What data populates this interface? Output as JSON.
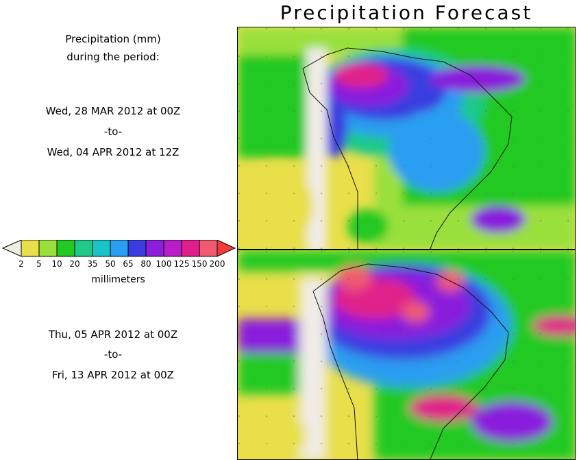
{
  "title": "Precipitation Forecast",
  "legend": {
    "header_line1": "Precipitation (mm)",
    "header_line2": "during the period:",
    "units": "millimeters",
    "ticks": [
      "2",
      "5",
      "10",
      "20",
      "35",
      "50",
      "65",
      "80",
      "100",
      "125",
      "150",
      "200"
    ],
    "colors": [
      "#e8df4a",
      "#9ae03c",
      "#22c922",
      "#1ec98a",
      "#19c4c8",
      "#2a9ef0",
      "#3a3ce0",
      "#8a1edc",
      "#b81ec8",
      "#e0208a",
      "#f05a70"
    ],
    "under_color": "#f0ece6",
    "over_color": "#f03c3c"
  },
  "period1": {
    "start": "Wed, 28 MAR 2012 at 00Z",
    "sep": "-to-",
    "end": "Wed, 04 APR 2012 at 12Z"
  },
  "period2": {
    "start": "Thu, 05 APR 2012 at 00Z",
    "sep": "-to-",
    "end": "Fri, 13 APR 2012 at 00Z"
  }
}
